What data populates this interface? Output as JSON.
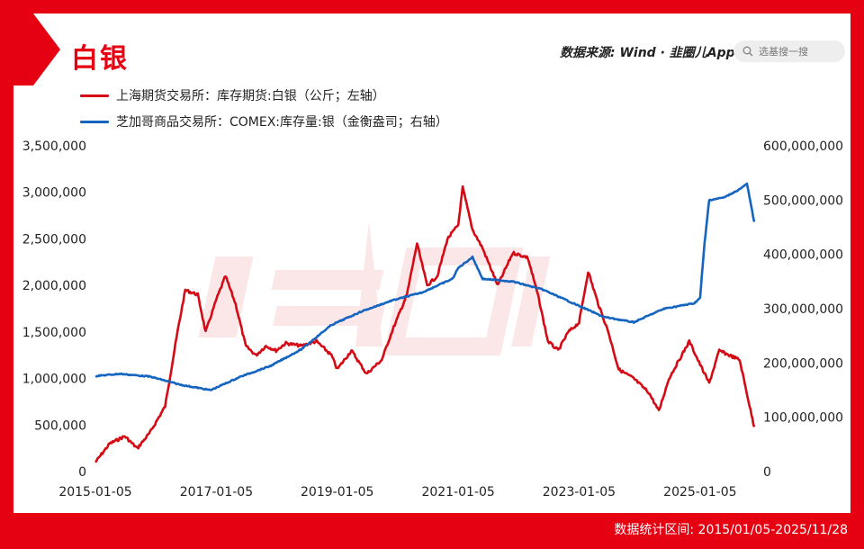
{
  "title": "白银",
  "source": "数据来源: Wind · 韭圈儿App",
  "search": {
    "placeholder": "选基搜一搜"
  },
  "footer": "数据统计区间: 2015/01/05-2025/11/28",
  "colors": {
    "frame": "#e50012",
    "series1": "#d40a14",
    "series2": "#1565c0"
  },
  "icons": {
    "search": "magnifier-icon",
    "watermark": "jiuquan-logo-watermark"
  },
  "chart_data": {
    "type": "line",
    "title": "白银",
    "legend_position": "top-left",
    "grid": false,
    "x_ticks": [
      "2015-01-05",
      "2017-01-05",
      "2019-01-05",
      "2021-01-05",
      "2023-01-05",
      "2025-01-05"
    ],
    "x_range": [
      "2015-01-05",
      "2025-11-28"
    ],
    "y_left": {
      "range": [
        0,
        3500000
      ],
      "ticks": [
        "0",
        "500,000",
        "1,000,000",
        "1,500,000",
        "2,000,000",
        "2,500,000",
        "3,000,000",
        "3,500,000"
      ]
    },
    "y_right": {
      "range": [
        0,
        600000000
      ],
      "ticks": [
        "0",
        "100,000,000",
        "200,000,000",
        "300,000,000",
        "400,000,000",
        "500,000,000",
        "600,000,000"
      ]
    },
    "series": [
      {
        "name": "上海期货交易所：库存期货:白银（公斤；左轴）",
        "axis": "left",
        "color": "#d40a14",
        "points": [
          [
            "2015-01-05",
            100000
          ],
          [
            "2015-04-01",
            300000
          ],
          [
            "2015-07-01",
            380000
          ],
          [
            "2015-09-15",
            250000
          ],
          [
            "2015-12-01",
            420000
          ],
          [
            "2016-03-01",
            700000
          ],
          [
            "2016-05-15",
            1500000
          ],
          [
            "2016-07-01",
            1950000
          ],
          [
            "2016-09-15",
            1900000
          ],
          [
            "2016-11-01",
            1500000
          ],
          [
            "2017-01-05",
            1850000
          ],
          [
            "2017-03-01",
            2100000
          ],
          [
            "2017-05-01",
            1800000
          ],
          [
            "2017-07-01",
            1350000
          ],
          [
            "2017-09-01",
            1250000
          ],
          [
            "2017-11-01",
            1350000
          ],
          [
            "2018-01-01",
            1300000
          ],
          [
            "2018-03-01",
            1380000
          ],
          [
            "2018-06-01",
            1350000
          ],
          [
            "2018-09-01",
            1400000
          ],
          [
            "2018-12-01",
            1250000
          ],
          [
            "2019-01-05",
            1100000
          ],
          [
            "2019-04-01",
            1300000
          ],
          [
            "2019-07-01",
            1050000
          ],
          [
            "2019-10-01",
            1200000
          ],
          [
            "2019-12-01",
            1500000
          ],
          [
            "2020-03-01",
            1900000
          ],
          [
            "2020-05-01",
            2450000
          ],
          [
            "2020-07-01",
            2000000
          ],
          [
            "2020-09-01",
            2100000
          ],
          [
            "2020-11-01",
            2500000
          ],
          [
            "2021-01-05",
            2650000
          ],
          [
            "2021-02-01",
            3050000
          ],
          [
            "2021-04-01",
            2600000
          ],
          [
            "2021-06-01",
            2400000
          ],
          [
            "2021-09-01",
            2000000
          ],
          [
            "2021-12-01",
            2350000
          ],
          [
            "2022-03-01",
            2300000
          ],
          [
            "2022-05-01",
            1900000
          ],
          [
            "2022-07-01",
            1400000
          ],
          [
            "2022-09-01",
            1300000
          ],
          [
            "2022-11-01",
            1500000
          ],
          [
            "2023-01-05",
            1600000
          ],
          [
            "2023-03-01",
            2150000
          ],
          [
            "2023-05-01",
            1800000
          ],
          [
            "2023-07-01",
            1500000
          ],
          [
            "2023-09-01",
            1100000
          ],
          [
            "2023-12-01",
            1000000
          ],
          [
            "2024-03-01",
            850000
          ],
          [
            "2024-05-01",
            650000
          ],
          [
            "2024-07-01",
            1000000
          ],
          [
            "2024-09-01",
            1200000
          ],
          [
            "2024-11-01",
            1400000
          ],
          [
            "2025-01-05",
            1150000
          ],
          [
            "2025-03-01",
            950000
          ],
          [
            "2025-05-01",
            1300000
          ],
          [
            "2025-07-01",
            1250000
          ],
          [
            "2025-09-01",
            1200000
          ],
          [
            "2025-11-01",
            700000
          ],
          [
            "2025-11-28",
            480000
          ]
        ]
      },
      {
        "name": "芝加哥商品交易所：COMEX:库存量:银（金衡盎司；右轴）",
        "axis": "right",
        "color": "#1565c0",
        "points": [
          [
            "2015-01-05",
            176000000
          ],
          [
            "2015-06-01",
            180000000
          ],
          [
            "2015-12-01",
            175000000
          ],
          [
            "2016-06-01",
            160000000
          ],
          [
            "2016-12-01",
            150000000
          ],
          [
            "2017-06-01",
            175000000
          ],
          [
            "2017-12-01",
            195000000
          ],
          [
            "2018-06-01",
            225000000
          ],
          [
            "2018-12-01",
            270000000
          ],
          [
            "2019-06-01",
            295000000
          ],
          [
            "2019-12-01",
            315000000
          ],
          [
            "2020-06-01",
            330000000
          ],
          [
            "2020-12-01",
            355000000
          ],
          [
            "2021-01-05",
            375000000
          ],
          [
            "2021-04-01",
            395000000
          ],
          [
            "2021-06-01",
            355000000
          ],
          [
            "2021-12-01",
            350000000
          ],
          [
            "2022-06-01",
            335000000
          ],
          [
            "2022-12-01",
            310000000
          ],
          [
            "2023-06-01",
            285000000
          ],
          [
            "2023-12-01",
            275000000
          ],
          [
            "2024-06-01",
            300000000
          ],
          [
            "2024-12-01",
            310000000
          ],
          [
            "2025-01-05",
            320000000
          ],
          [
            "2025-02-01",
            420000000
          ],
          [
            "2025-03-01",
            500000000
          ],
          [
            "2025-06-01",
            505000000
          ],
          [
            "2025-09-01",
            520000000
          ],
          [
            "2025-10-15",
            530000000
          ],
          [
            "2025-11-28",
            460000000
          ]
        ]
      }
    ]
  }
}
